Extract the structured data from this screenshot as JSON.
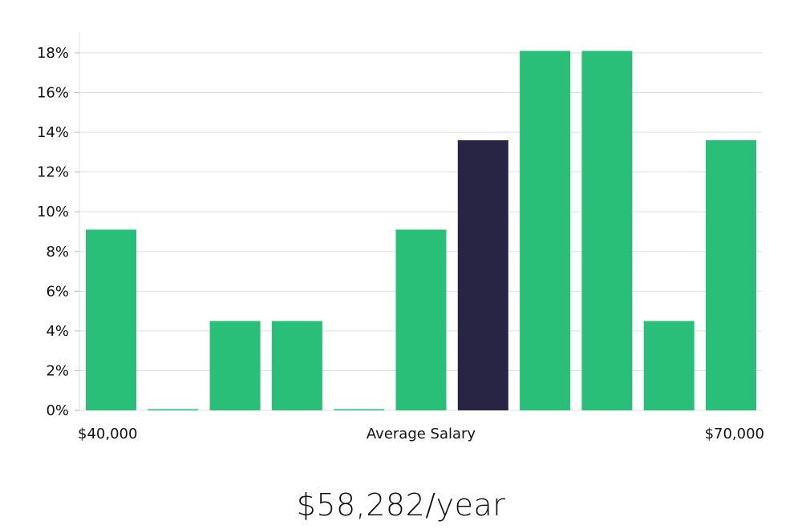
{
  "chart_data": {
    "type": "bar",
    "categories": [
      "1",
      "2",
      "3",
      "4",
      "5",
      "6",
      "7",
      "8",
      "9",
      "10",
      "11"
    ],
    "values": [
      9.1,
      0,
      4.5,
      4.5,
      0,
      9.1,
      13.6,
      18.1,
      18.1,
      4.5,
      13.6
    ],
    "highlight_index": 6,
    "ylim": [
      0,
      19
    ],
    "yticks": [
      0,
      2,
      4,
      6,
      8,
      10,
      12,
      14,
      16,
      18
    ],
    "ytick_suffix": "%",
    "grid": true,
    "x_axis_labels": {
      "left": "$40,000",
      "center": "Average Salary",
      "right": "$70,000"
    }
  },
  "colors": {
    "bar": "#29bf78",
    "highlight": "#272444",
    "grid": "#dddddd"
  },
  "headline": "$58,282/year"
}
